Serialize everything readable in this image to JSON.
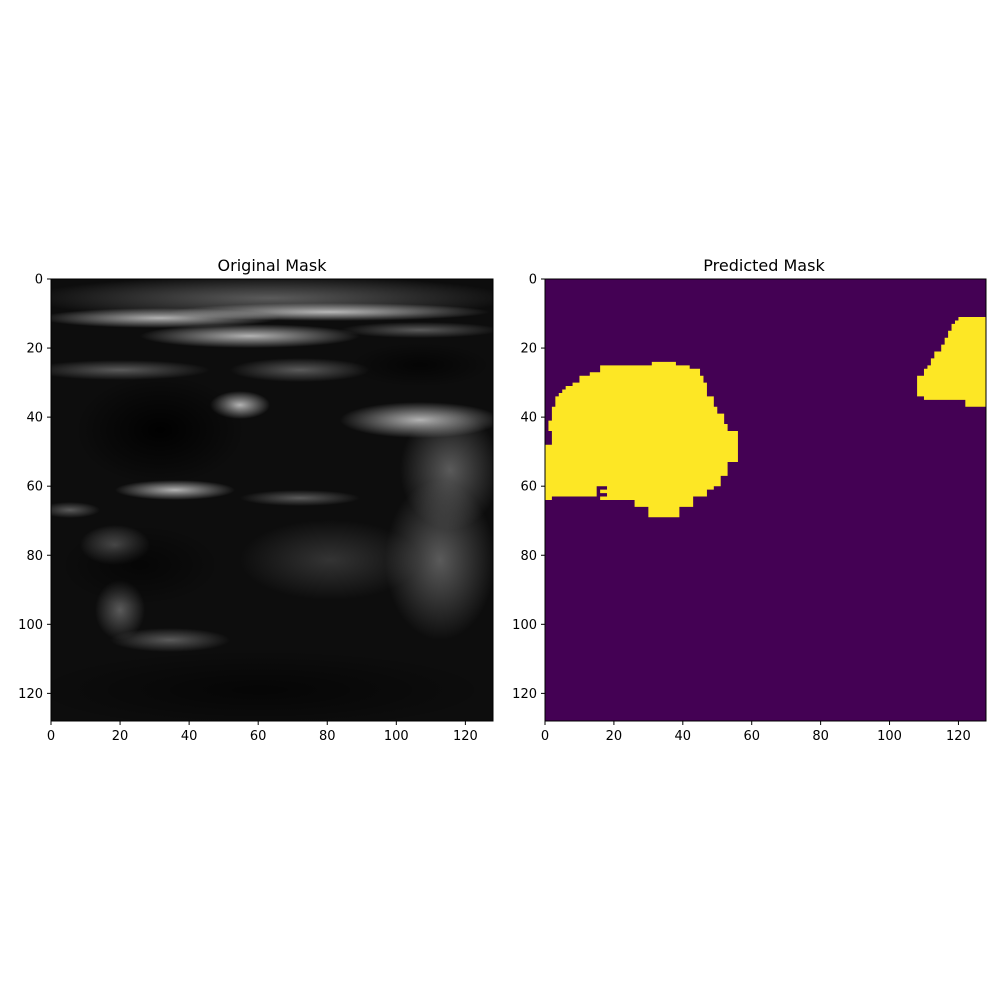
{
  "chart_data": [
    {
      "type": "heatmap",
      "title": "Original Mask",
      "xlim": [
        0,
        128
      ],
      "ylim": [
        128,
        0
      ],
      "xticks": [
        0,
        20,
        40,
        60,
        80,
        100,
        120
      ],
      "yticks": [
        0,
        20,
        40,
        60,
        80,
        100,
        120
      ],
      "colormap": "gray",
      "content": "grayscale ultrasound image"
    },
    {
      "type": "heatmap",
      "title": "Predicted Mask",
      "xlim": [
        0,
        128
      ],
      "ylim": [
        128,
        0
      ],
      "xticks": [
        0,
        20,
        40,
        60,
        80,
        100,
        120
      ],
      "yticks": [
        0,
        20,
        40,
        60,
        80,
        100,
        120
      ],
      "colormap": "viridis",
      "colors": {
        "background": "#440154",
        "foreground": "#fde725"
      },
      "regions": [
        {
          "outline": [
            [
              0,
              48
            ],
            [
              2,
              48
            ],
            [
              2,
              44
            ],
            [
              1,
              44
            ],
            [
              1,
              41
            ],
            [
              2,
              41
            ],
            [
              2,
              37
            ],
            [
              3,
              37
            ],
            [
              3,
              34
            ],
            [
              4,
              34
            ],
            [
              4,
              33
            ],
            [
              5,
              33
            ],
            [
              5,
              32
            ],
            [
              6,
              32
            ],
            [
              6,
              31
            ],
            [
              8,
              31
            ],
            [
              8,
              30
            ],
            [
              10,
              30
            ],
            [
              10,
              28
            ],
            [
              13,
              28
            ],
            [
              13,
              27
            ],
            [
              16,
              27
            ],
            [
              16,
              25
            ],
            [
              31,
              25
            ],
            [
              31,
              24
            ],
            [
              38,
              24
            ],
            [
              38,
              25
            ],
            [
              42,
              25
            ],
            [
              42,
              26
            ],
            [
              45,
              26
            ],
            [
              45,
              28
            ],
            [
              46,
              28
            ],
            [
              46,
              30
            ],
            [
              47,
              30
            ],
            [
              47,
              34
            ],
            [
              49,
              34
            ],
            [
              49,
              37
            ],
            [
              50,
              37
            ],
            [
              50,
              39
            ],
            [
              52,
              39
            ],
            [
              52,
              42
            ],
            [
              53,
              42
            ],
            [
              53,
              44
            ],
            [
              56,
              44
            ],
            [
              56,
              53
            ],
            [
              53,
              53
            ],
            [
              53,
              57
            ],
            [
              51,
              57
            ],
            [
              51,
              60
            ],
            [
              49,
              60
            ],
            [
              49,
              61
            ],
            [
              47,
              61
            ],
            [
              47,
              63
            ],
            [
              43,
              63
            ],
            [
              43,
              66
            ],
            [
              39,
              66
            ],
            [
              39,
              69
            ],
            [
              30,
              69
            ],
            [
              30,
              66
            ],
            [
              26,
              66
            ],
            [
              26,
              64
            ],
            [
              16,
              64
            ],
            [
              16,
              63
            ],
            [
              2,
              63
            ],
            [
              2,
              64
            ],
            [
              0,
              64
            ]
          ]
        },
        {
          "outline": [
            [
              108,
              28
            ],
            [
              110,
              28
            ],
            [
              110,
              26
            ],
            [
              111,
              26
            ],
            [
              111,
              25
            ],
            [
              112,
              25
            ],
            [
              112,
              23
            ],
            [
              113,
              23
            ],
            [
              113,
              21
            ],
            [
              115,
              21
            ],
            [
              115,
              19
            ],
            [
              116,
              19
            ],
            [
              116,
              17
            ],
            [
              117,
              17
            ],
            [
              117,
              15
            ],
            [
              118,
              15
            ],
            [
              118,
              13
            ],
            [
              119,
              13
            ],
            [
              119,
              12
            ],
            [
              120,
              12
            ],
            [
              120,
              11
            ],
            [
              128,
              11
            ],
            [
              128,
              37
            ],
            [
              122,
              37
            ],
            [
              122,
              35
            ],
            [
              110,
              35
            ],
            [
              110,
              34
            ],
            [
              108,
              34
            ]
          ]
        },
        {
          "value": 0,
          "outline": [
            [
              15,
              60
            ],
            [
              18,
              60
            ],
            [
              18,
              61
            ],
            [
              16,
              61
            ],
            [
              16,
              62
            ],
            [
              18,
              62
            ],
            [
              18,
              63
            ],
            [
              15,
              63
            ]
          ]
        }
      ]
    }
  ]
}
